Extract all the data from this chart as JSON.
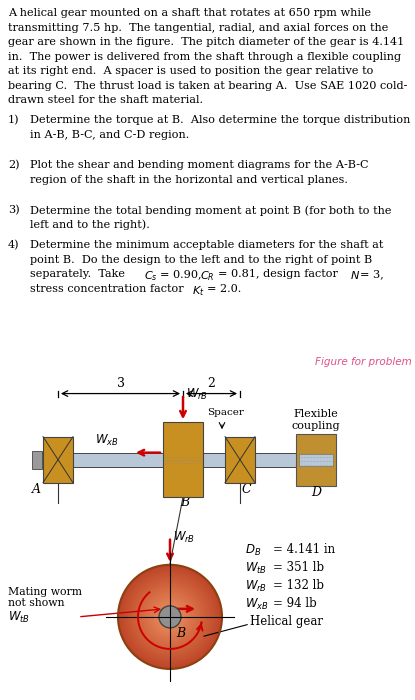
{
  "bearing_color": "#C89020",
  "shaft_color": "#B8C8D8",
  "spacer_color": "#C89020",
  "coupling_color": "#C09030",
  "background": "#ffffff",
  "fig_label_color": "#E0508A",
  "arrow_color": "#CC0000",
  "para": "A helical gear mounted on a shaft that rotates at 650 rpm while\ntransmitting 7.5 hp.  The tangential, radial, and axial forces on the\ngear are shown in the figure.  The pitch diameter of the gear is 4.141\nin.  The power is delivered from the shaft through a flexible coupling\nat its right end.  A spacer is used to position the gear relative to\nbearing C.  The thrust load is taken at bearing A.  Use SAE 1020 cold-\ndrawn steel for the shaft material.",
  "item1_num": "1)",
  "item1_txt": "Determine the torque at B.  Also determine the torque distribution\n      in A-B, B-C, and C-D region.",
  "item2_num": "2)",
  "item2_txt": "Plot the shear and bending moment diagrams for the A-B-C\n      region of the shaft in the horizontal and vertical planes.",
  "item3_num": "3)",
  "item3_txt": "Determine the total bending moment at point B (for both to the\n      left and to the right).",
  "item4_num": "4)",
  "item4_txt_a": "Determine the minimum acceptable diameters for the shaft at\n      point B.  Do the design to the left and to the right of point B",
  "item4_txt_b": "      separately.  Take ",
  "item4_txt_c": "      stress concentration factor ",
  "fig_label": "Figure for problem",
  "data_lines": [
    "D_B   = 4.141 in",
    "W_tB = 351 lb",
    "W_rB = 132 lb",
    "W_xB = 94 lb",
    "Helical gear"
  ]
}
